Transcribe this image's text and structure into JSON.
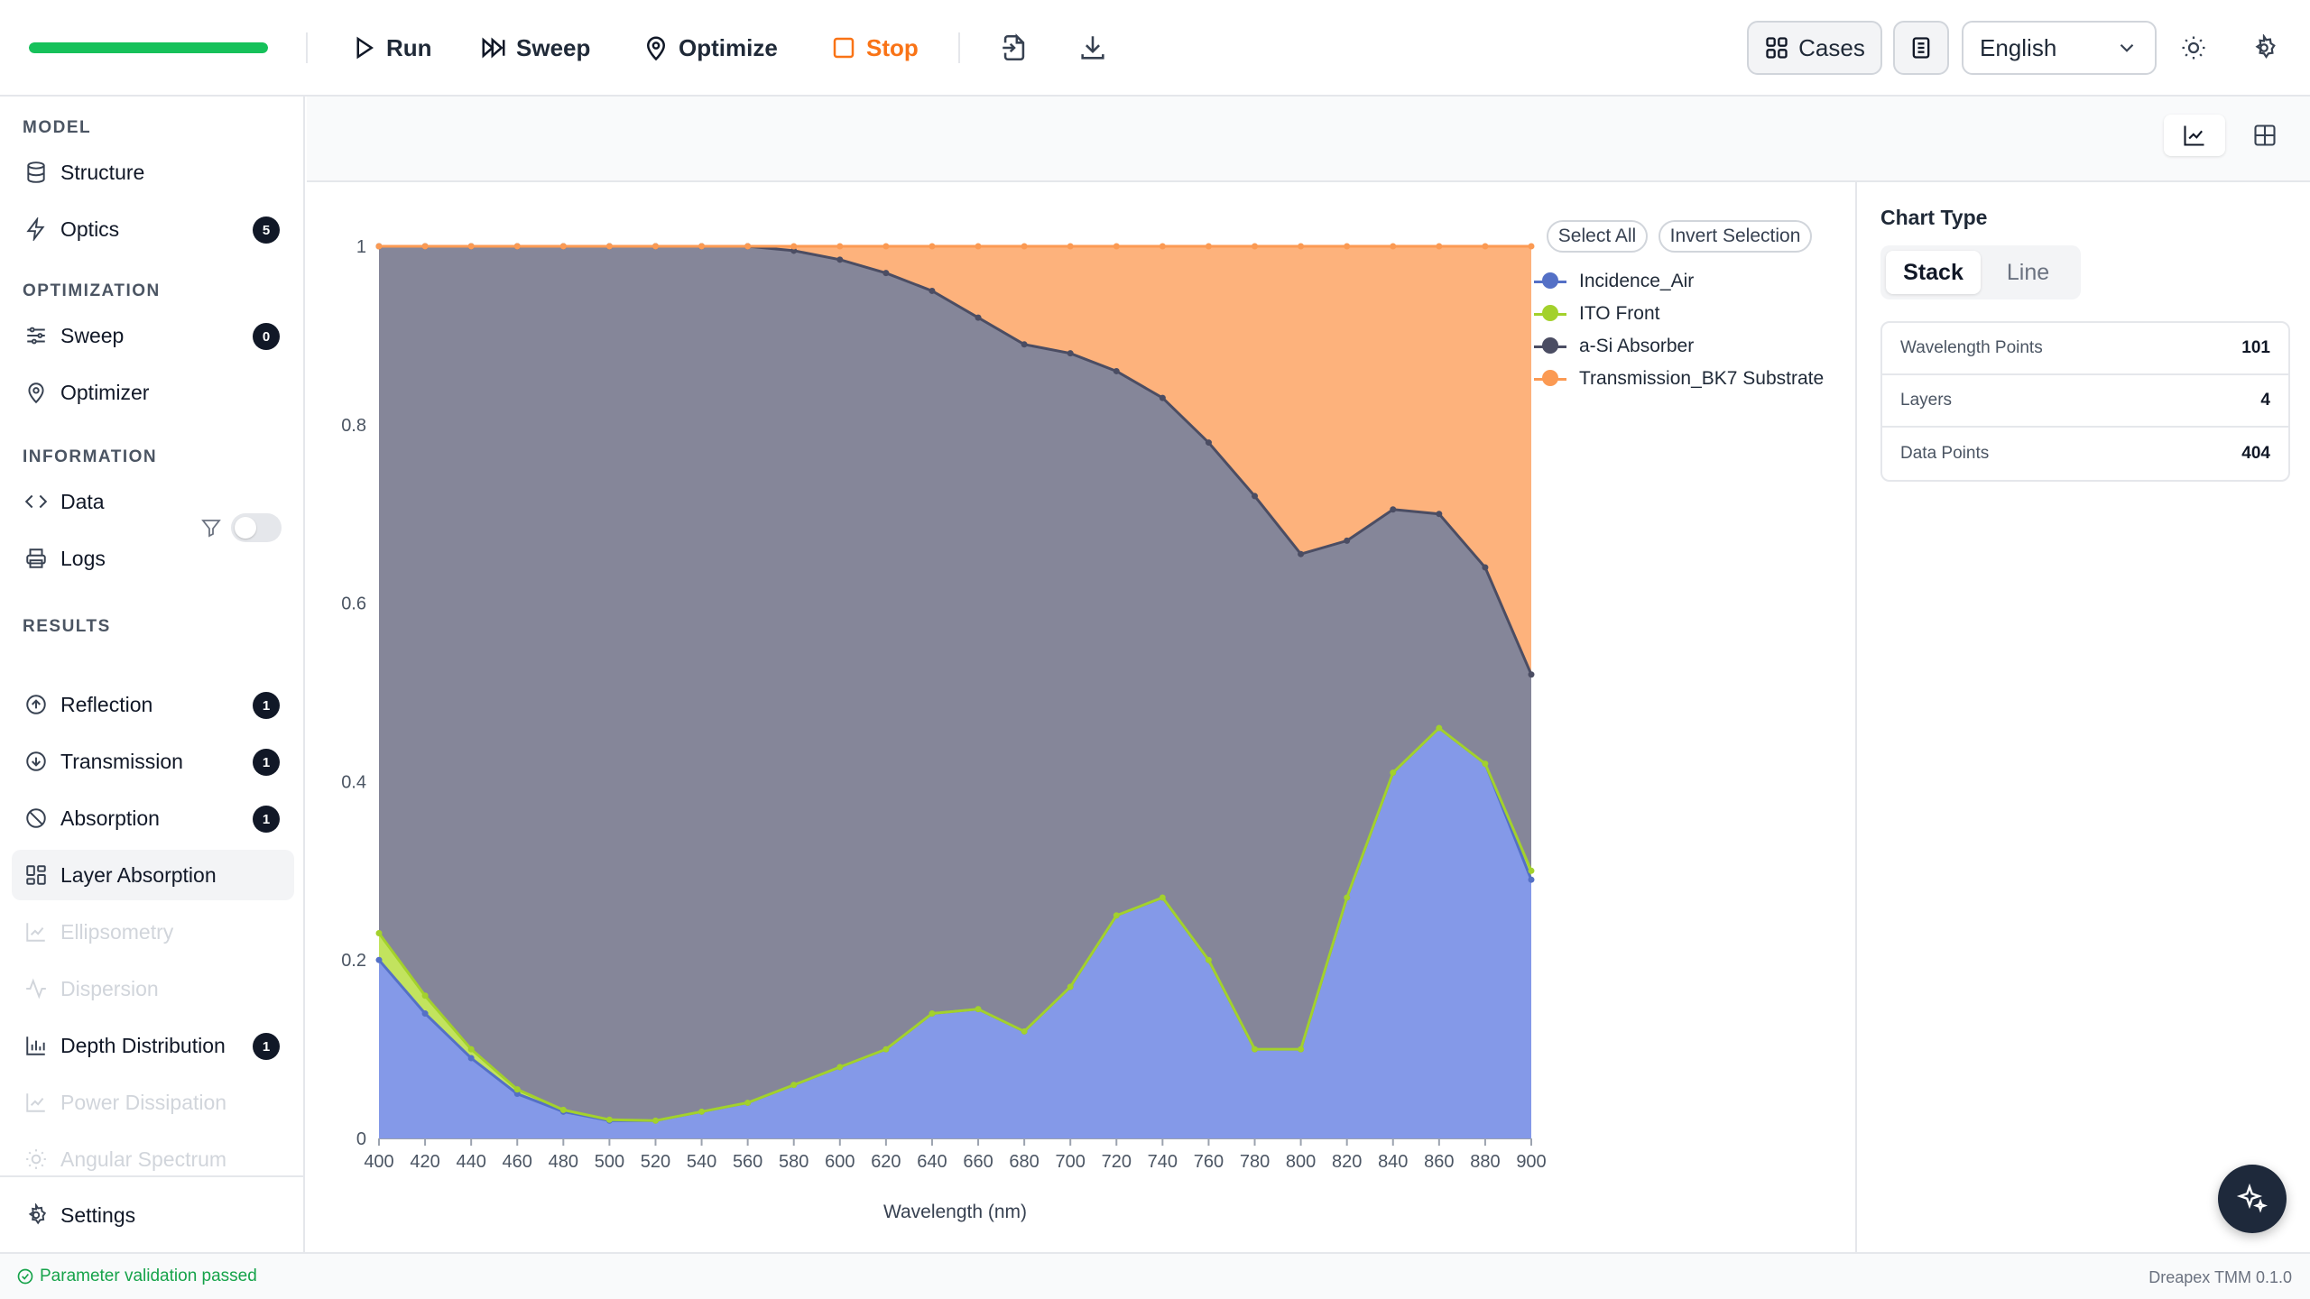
{
  "toolbar": {
    "progress": 1.0,
    "run_label": "Run",
    "sweep_label": "Sweep",
    "optimize_label": "Optimize",
    "stop_label": "Stop",
    "cases_label": "Cases",
    "language": "English"
  },
  "sidebar": {
    "sections": {
      "model": "MODEL",
      "optimization": "OPTIMIZATION",
      "information": "INFORMATION",
      "results": "RESULTS"
    },
    "items": {
      "structure": {
        "label": "Structure"
      },
      "optics": {
        "label": "Optics",
        "badge": "5"
      },
      "sweep": {
        "label": "Sweep",
        "badge": "0"
      },
      "optimizer": {
        "label": "Optimizer"
      },
      "data": {
        "label": "Data"
      },
      "logs": {
        "label": "Logs"
      },
      "reflection": {
        "label": "Reflection",
        "badge": "1"
      },
      "transmission": {
        "label": "Transmission",
        "badge": "1"
      },
      "absorption": {
        "label": "Absorption",
        "badge": "1"
      },
      "layer_absorption": {
        "label": "Layer Absorption"
      },
      "ellipsometry": {
        "label": "Ellipsometry"
      },
      "dispersion": {
        "label": "Dispersion"
      },
      "depth_distribution": {
        "label": "Depth Distribution",
        "badge": "1"
      },
      "power_dissipation": {
        "label": "Power Dissipation"
      },
      "angular_spectrum": {
        "label": "Angular Spectrum"
      },
      "settings": {
        "label": "Settings"
      }
    },
    "results_filter_enabled": false
  },
  "chart_controls": {
    "select_all": "Select All",
    "invert_selection": "Invert Selection"
  },
  "right_panel": {
    "chart_type_title": "Chart Type",
    "chart_type_options": [
      "Stack",
      "Line"
    ],
    "chart_type_selected": "Stack",
    "stats": [
      {
        "label": "Wavelength Points",
        "value": "101"
      },
      {
        "label": "Layers",
        "value": "4"
      },
      {
        "label": "Data Points",
        "value": "404"
      }
    ]
  },
  "status": {
    "message": "Parameter validation passed",
    "version": "Dreapex TMM 0.1.0"
  },
  "colors": {
    "accent_green": "#16c15a",
    "stop_orange": "#f97316",
    "series_incidence": "#5470c6",
    "series_ito": "#a3d12c",
    "series_asi": "#4b4d63",
    "series_bk7": "#fb9a53"
  },
  "chart_data": {
    "type": "area",
    "stacked": true,
    "xlabel": "Wavelength (nm)",
    "ylabel": "",
    "xlim": [
      400,
      900
    ],
    "ylim": [
      0,
      1
    ],
    "x_ticks": [
      400,
      420,
      440,
      460,
      480,
      500,
      520,
      540,
      560,
      580,
      600,
      620,
      640,
      660,
      680,
      700,
      720,
      740,
      760,
      780,
      800,
      820,
      840,
      860,
      880,
      900
    ],
    "y_ticks": [
      0,
      0.2,
      0.4,
      0.6,
      0.8,
      1
    ],
    "y_tick_labels": [
      "0",
      "0.2",
      "0.4",
      "0.6",
      "0.8",
      "1"
    ],
    "legend_position": "top-right",
    "x": [
      400,
      420,
      440,
      460,
      480,
      500,
      520,
      540,
      560,
      580,
      600,
      620,
      640,
      660,
      680,
      700,
      720,
      740,
      760,
      780,
      800,
      820,
      840,
      860,
      880,
      900
    ],
    "cumulative_series": [
      {
        "name": "Incidence_Air",
        "color": "#5470c6",
        "values": [
          0.2,
          0.14,
          0.09,
          0.05,
          0.03,
          0.02,
          0.02,
          0.03,
          0.04,
          0.06,
          0.08,
          0.1,
          0.14,
          0.145,
          0.12,
          0.17,
          0.25,
          0.27,
          0.2,
          0.1,
          0.1,
          0.27,
          0.41,
          0.46,
          0.42,
          0.29
        ]
      },
      {
        "name": "ITO Front",
        "color": "#a3d12c",
        "values": [
          0.23,
          0.16,
          0.1,
          0.055,
          0.032,
          0.021,
          0.02,
          0.03,
          0.04,
          0.06,
          0.08,
          0.1,
          0.14,
          0.145,
          0.12,
          0.17,
          0.25,
          0.27,
          0.2,
          0.1,
          0.1,
          0.27,
          0.41,
          0.46,
          0.42,
          0.3
        ]
      },
      {
        "name": "a-Si Absorber",
        "color": "#4b4d63",
        "values": [
          1.0,
          1.0,
          1.0,
          1.0,
          1.0,
          1.0,
          1.0,
          1.0,
          1.0,
          0.995,
          0.985,
          0.97,
          0.95,
          0.92,
          0.89,
          0.88,
          0.86,
          0.83,
          0.78,
          0.72,
          0.655,
          0.67,
          0.705,
          0.7,
          0.64,
          0.52
        ]
      },
      {
        "name": "Transmission_BK7 Substrate",
        "color": "#fb9a53",
        "values": [
          1.0,
          1.0,
          1.0,
          1.0,
          1.0,
          1.0,
          1.0,
          1.0,
          1.0,
          1.0,
          1.0,
          1.0,
          1.0,
          1.0,
          1.0,
          1.0,
          1.0,
          1.0,
          1.0,
          1.0,
          1.0,
          1.0,
          1.0,
          1.0,
          1.0,
          1.0
        ]
      }
    ]
  }
}
